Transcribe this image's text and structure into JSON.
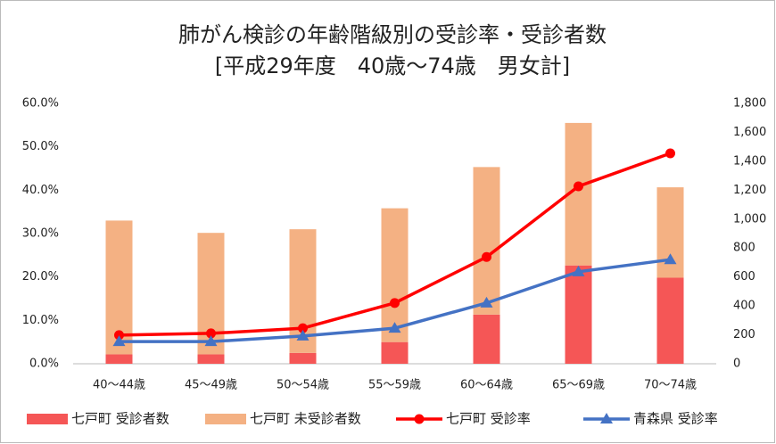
{
  "chart_data": {
    "type": "combo",
    "title": "肺がん検診の年齢階級別の受診率・受診者数",
    "subtitle": "[平成29年度　40歳～74歳　男女計]",
    "categories": [
      "40～44歳",
      "45～49歳",
      "50～54歳",
      "55～59歳",
      "60～64歳",
      "65～69歳",
      "70～74歳"
    ],
    "stacked": true,
    "grid": false,
    "legend": "bottom",
    "series": [
      {
        "name": "七戸町 受診者数",
        "type": "bar",
        "axis": "y2",
        "color": "#f55656",
        "values": [
          65,
          65,
          75,
          150,
          340,
          680,
          595
        ]
      },
      {
        "name": "七戸町 未受診者数",
        "type": "bar",
        "axis": "y2",
        "color": "#f4b183",
        "values": [
          925,
          840,
          855,
          925,
          1020,
          985,
          625
        ]
      },
      {
        "name": "七戸町 受診率",
        "type": "line",
        "marker": "circle",
        "color": "#ff0000",
        "values": [
          6.6,
          7.0,
          8.2,
          14.0,
          24.6,
          40.9,
          48.5
        ]
      },
      {
        "name": "青森県 受診率",
        "type": "line",
        "marker": "triangle",
        "color": "#4472c4",
        "values": [
          5.1,
          5.1,
          6.4,
          8.2,
          14.0,
          21.2,
          24.0
        ]
      }
    ],
    "ylim": [
      0,
      60
    ],
    "yticks": [
      {
        "value": 0,
        "label": "0.0%"
      },
      {
        "value": 10,
        "label": "10.0%"
      },
      {
        "value": 20,
        "label": "20.0%"
      },
      {
        "value": 30,
        "label": "30.0%"
      },
      {
        "value": 40,
        "label": "40.0%"
      },
      {
        "value": 50,
        "label": "50.0%"
      },
      {
        "value": 60,
        "label": "60.0%"
      }
    ],
    "y2lim": [
      0,
      1800
    ],
    "y2ticks": [
      0,
      200,
      400,
      600,
      800,
      {
        "value": 1000,
        "label": "1,000"
      },
      {
        "value": 1200,
        "label": "1,200"
      },
      {
        "value": 1400,
        "label": "1,400"
      },
      {
        "value": 1600,
        "label": "1,600"
      },
      {
        "value": 1800,
        "label": "1,800"
      }
    ]
  }
}
